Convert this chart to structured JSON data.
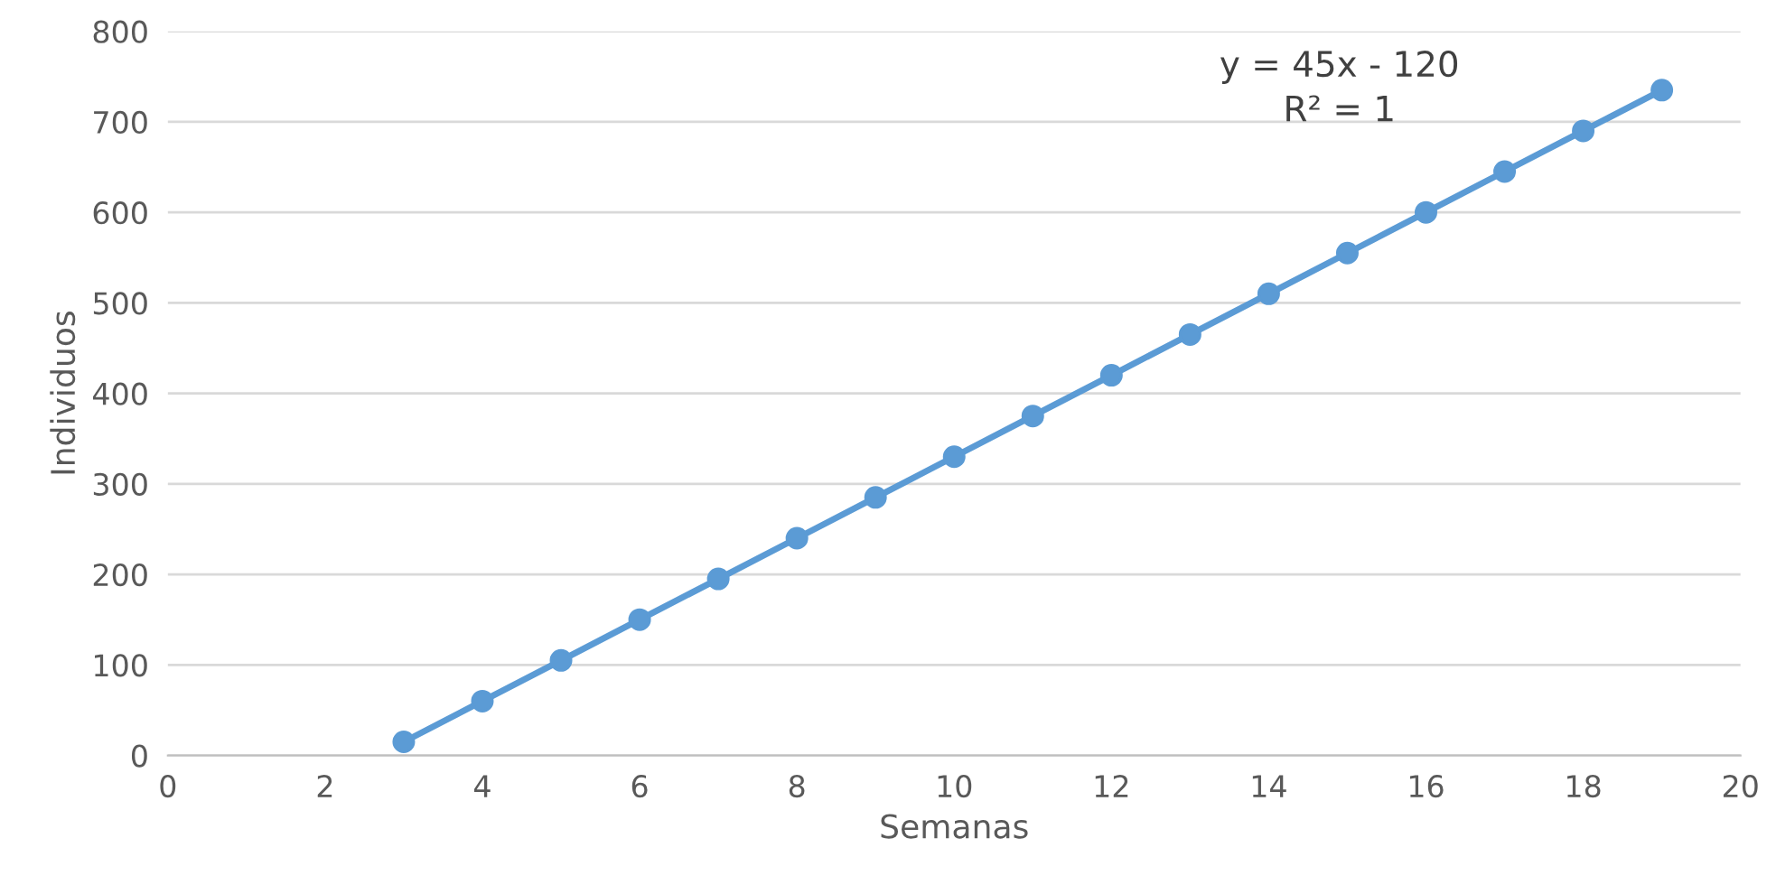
{
  "chart_data": {
    "type": "line",
    "xlabel": "Semanas",
    "ylabel": "Individuos",
    "x": [
      3,
      4,
      5,
      6,
      7,
      8,
      9,
      10,
      11,
      12,
      13,
      14,
      15,
      16,
      17,
      18,
      19
    ],
    "series": [
      {
        "color": "#5b9bd5",
        "values": [
          15,
          60,
          105,
          150,
          195,
          240,
          285,
          330,
          375,
          420,
          465,
          510,
          555,
          600,
          645,
          690,
          735
        ]
      }
    ],
    "xlim": [
      0,
      20
    ],
    "xticks": [
      0,
      2,
      4,
      6,
      8,
      10,
      12,
      14,
      16,
      18,
      20
    ],
    "ylim": [
      0,
      800
    ],
    "yticks": [
      0,
      100,
      200,
      300,
      400,
      500,
      600,
      700,
      800
    ],
    "grid": "y",
    "marker": "circle",
    "line_style": "solid",
    "annotations": [
      "y = 45x - 120\nR² = 1"
    ]
  }
}
